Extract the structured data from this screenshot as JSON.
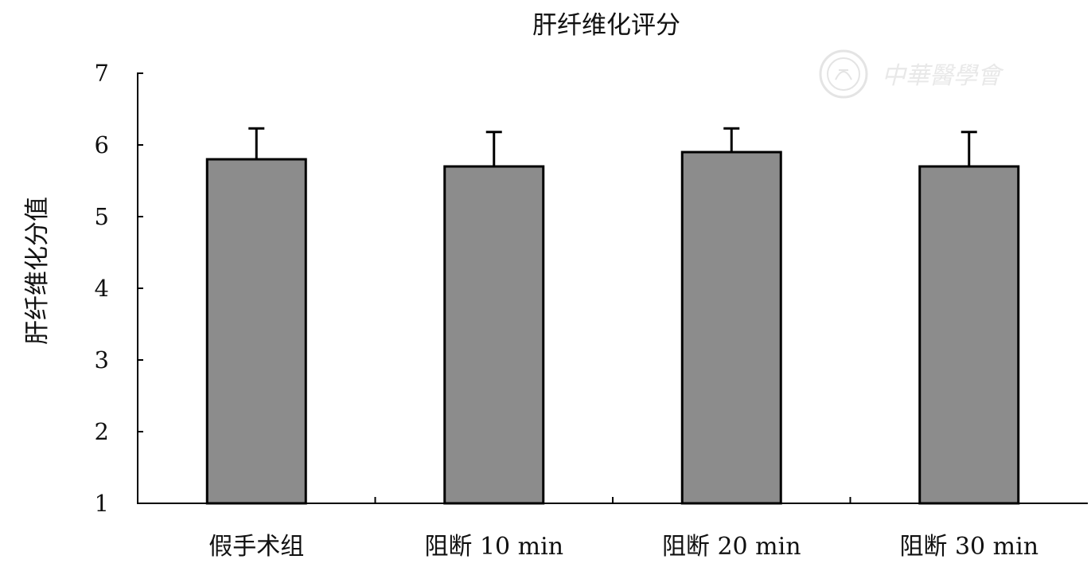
{
  "chart_data": {
    "type": "bar",
    "title": "肝纤维化评分",
    "xlabel": "",
    "ylabel": "肝纤维化分值",
    "categories": [
      "假手术组",
      "阻断 10 min",
      "阻断 20 min",
      "阻断 30 min"
    ],
    "values": [
      5.8,
      5.7,
      5.9,
      5.7
    ],
    "error": [
      0.43,
      0.48,
      0.33,
      0.48
    ],
    "ylim": [
      1,
      7
    ],
    "yticks": [
      "1",
      "2",
      "3",
      "4",
      "5",
      "6",
      "7"
    ],
    "grid": false,
    "bar_color": "#8c8c8c",
    "bar_edge_color": "#000000"
  },
  "watermark": {
    "text": "中華醫學會",
    "color": "#d7d7d7"
  }
}
